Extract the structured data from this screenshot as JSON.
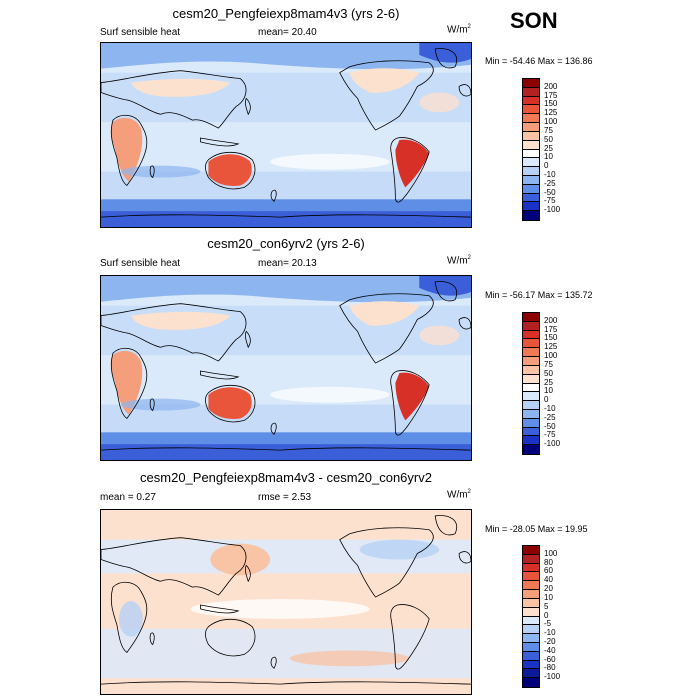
{
  "season": "SON",
  "panels": [
    {
      "title": "cesm20_Pengfeiexp8mam4v3 (yrs 2-6)",
      "left_label": "Surf sensible heat",
      "center_label": "mean=  20.40",
      "units": "W/m",
      "units_exp": "2",
      "minmax": "Min = -54.46 Max = 136.86",
      "levels": [
        "200",
        "175",
        "150",
        "125",
        "100",
        "75",
        "50",
        "25",
        "10",
        "0",
        "-10",
        "-25",
        "-50",
        "-75",
        "-100"
      ],
      "colors": [
        "#8b0000",
        "#b22222",
        "#d73027",
        "#e8553a",
        "#f07a55",
        "#f59e7c",
        "#f9c3a6",
        "#fde1cf",
        "#ffffff",
        "#dbeafb",
        "#b6d1f5",
        "#8db5ef",
        "#5f8ee6",
        "#3b5fd8",
        "#1a33c4",
        "#00007a"
      ],
      "type": "full"
    },
    {
      "title": "cesm20_con6yrv2 (yrs 2-6)",
      "left_label": "Surf sensible heat",
      "center_label": "mean=  20.13",
      "units": "W/m",
      "units_exp": "2",
      "minmax": "Min = -56.17 Max = 135.72",
      "levels": [
        "200",
        "175",
        "150",
        "125",
        "100",
        "75",
        "50",
        "25",
        "10",
        "0",
        "-10",
        "-25",
        "-50",
        "-75",
        "-100"
      ],
      "colors": [
        "#8b0000",
        "#b22222",
        "#d73027",
        "#e8553a",
        "#f07a55",
        "#f59e7c",
        "#f9c3a6",
        "#fde1cf",
        "#ffffff",
        "#dbeafb",
        "#b6d1f5",
        "#8db5ef",
        "#5f8ee6",
        "#3b5fd8",
        "#1a33c4",
        "#00007a"
      ],
      "type": "full"
    },
    {
      "title": "cesm20_Pengfeiexp8mam4v3 - cesm20_con6yrv2",
      "left_label": "mean =   0.27",
      "center_label": "rmse =   2.53",
      "units": "W/m",
      "units_exp": "2",
      "minmax": "Min = -28.05 Max =  19.95",
      "levels": [
        "100",
        "80",
        "60",
        "40",
        "20",
        "10",
        "5",
        "0",
        "-5",
        "-10",
        "-20",
        "-40",
        "-60",
        "-80",
        "-100"
      ],
      "colors": [
        "#8b0000",
        "#b22222",
        "#d73027",
        "#e8553a",
        "#f07a55",
        "#f59e7c",
        "#f9c3a6",
        "#fde1cf",
        "#dbeafb",
        "#b6d1f5",
        "#8db5ef",
        "#5f8ee6",
        "#3b5fd8",
        "#1a33c4",
        "#0a1a99",
        "#00007a"
      ],
      "type": "diff"
    }
  ]
}
